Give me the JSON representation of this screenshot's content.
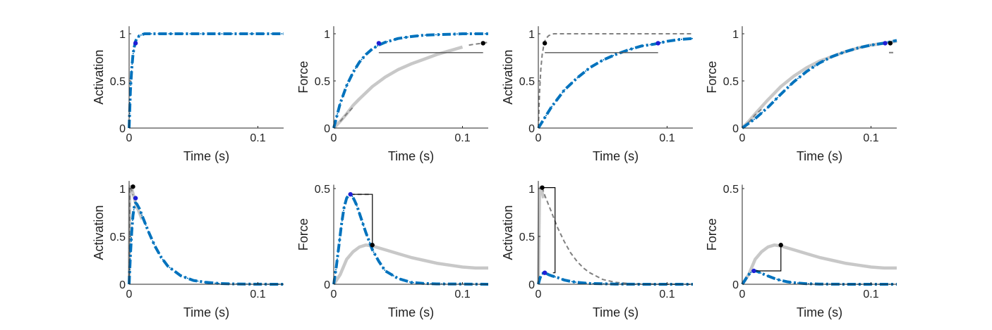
{
  "colors": {
    "model": "#0072bd",
    "data": "#c8c8c8",
    "reference": "#808080",
    "marker_model": "#1f1fd6",
    "marker_data": "#000000",
    "bracket": "#000000",
    "axis": "#262626"
  },
  "chart_data": [
    {
      "type": "line",
      "row": 1,
      "col": 1,
      "xlabel": "Time (s)",
      "ylabel": "Activation",
      "xlim": [
        0,
        0.12
      ],
      "ylim": [
        0,
        1.08
      ],
      "xticks": [
        0,
        0.1
      ],
      "xtick_labels": [
        "0",
        "0.1"
      ],
      "yticks": [
        0,
        0.5,
        1
      ],
      "ytick_labels": [
        "0",
        "0.5",
        "1"
      ],
      "series": [
        {
          "style": "model",
          "x": [
            0,
            0.001,
            0.002,
            0.003,
            0.004,
            0.005,
            0.006,
            0.008,
            0.01,
            0.012,
            0.12
          ],
          "y": [
            0,
            0.39,
            0.63,
            0.78,
            0.86,
            0.92,
            0.95,
            0.98,
            0.99,
            1.0,
            1.0
          ]
        }
      ],
      "markers": [
        {
          "style": "model",
          "x": 0.005,
          "y": 0.9
        }
      ]
    },
    {
      "type": "line",
      "row": 1,
      "col": 2,
      "xlabel": "Time (s)",
      "ylabel": "Force",
      "xlim": [
        0,
        0.12
      ],
      "ylim": [
        0,
        1.08
      ],
      "xticks": [
        0,
        0.1
      ],
      "xtick_labels": [
        "0",
        "0.1"
      ],
      "yticks": [
        0,
        0.5,
        1
      ],
      "ytick_labels": [
        "0",
        "0.5",
        "1"
      ],
      "series": [
        {
          "style": "data",
          "x": [
            0,
            0.005,
            0.01,
            0.015,
            0.02,
            0.03,
            0.04,
            0.05,
            0.06,
            0.07,
            0.08,
            0.09,
            0.1
          ],
          "y": [
            0,
            0.07,
            0.15,
            0.24,
            0.31,
            0.44,
            0.54,
            0.62,
            0.68,
            0.73,
            0.78,
            0.82,
            0.86
          ]
        },
        {
          "style": "reference",
          "x": [
            0.005,
            0.01,
            0.015
          ],
          "y": [
            0.07,
            0.15,
            0.22
          ]
        },
        {
          "style": "reference",
          "x": [
            0.105,
            0.11,
            0.116,
            0.12
          ],
          "y": [
            0.88,
            0.89,
            0.9,
            0.91
          ]
        },
        {
          "style": "model",
          "x": [
            0,
            0.005,
            0.01,
            0.015,
            0.02,
            0.025,
            0.03,
            0.035,
            0.04,
            0.05,
            0.06,
            0.07,
            0.08,
            0.09,
            0.1,
            0.11,
            0.12
          ],
          "y": [
            0,
            0.26,
            0.45,
            0.59,
            0.7,
            0.78,
            0.84,
            0.88,
            0.91,
            0.95,
            0.97,
            0.985,
            0.99,
            0.995,
            1.0,
            1.0,
            1.0
          ]
        }
      ],
      "markers": [
        {
          "style": "model",
          "x": 0.035,
          "y": 0.9
        },
        {
          "style": "data",
          "x": 0.116,
          "y": 0.9
        }
      ],
      "hline": {
        "x": [
          0.035,
          0.116
        ],
        "y": 0.8
      }
    },
    {
      "type": "line",
      "row": 1,
      "col": 3,
      "xlabel": "Time (s)",
      "ylabel": "Activation",
      "xlim": [
        0,
        0.12
      ],
      "ylim": [
        0,
        1.08
      ],
      "xticks": [
        0,
        0.1
      ],
      "xtick_labels": [
        "0",
        "0.1"
      ],
      "yticks": [
        0,
        0.5,
        1
      ],
      "ytick_labels": [
        "0",
        "0.5",
        "1"
      ],
      "series": [
        {
          "style": "reference",
          "x": [
            0,
            0.001,
            0.002,
            0.003,
            0.004,
            0.005,
            0.006,
            0.008,
            0.01,
            0.012,
            0.12
          ],
          "y": [
            0,
            0.39,
            0.63,
            0.78,
            0.86,
            0.92,
            0.95,
            0.98,
            0.99,
            1.0,
            1.0
          ]
        },
        {
          "style": "model",
          "x": [
            0,
            0.01,
            0.02,
            0.03,
            0.04,
            0.05,
            0.06,
            0.07,
            0.08,
            0.09,
            0.1,
            0.11,
            0.12
          ],
          "y": [
            0,
            0.22,
            0.4,
            0.53,
            0.64,
            0.72,
            0.78,
            0.83,
            0.87,
            0.89,
            0.92,
            0.94,
            0.95
          ]
        }
      ],
      "markers": [
        {
          "style": "data",
          "x": 0.005,
          "y": 0.9
        },
        {
          "style": "model",
          "x": 0.093,
          "y": 0.9
        }
      ],
      "hline": {
        "x": [
          0.005,
          0.093
        ],
        "y": 0.8
      }
    },
    {
      "type": "line",
      "row": 1,
      "col": 4,
      "xlabel": "Time (s)",
      "ylabel": "Force",
      "xlim": [
        0,
        0.12
      ],
      "ylim": [
        0,
        1.08
      ],
      "xticks": [
        0,
        0.1
      ],
      "xtick_labels": [
        "0",
        "0.1"
      ],
      "yticks": [
        0,
        0.5,
        1
      ],
      "ytick_labels": [
        "0",
        "0.5",
        "1"
      ],
      "series": [
        {
          "style": "data",
          "x": [
            0,
            0.005,
            0.01,
            0.02,
            0.03,
            0.04,
            0.05,
            0.06,
            0.07,
            0.08,
            0.09,
            0.1,
            0.11,
            0.12
          ],
          "y": [
            0,
            0.07,
            0.15,
            0.3,
            0.44,
            0.55,
            0.64,
            0.71,
            0.76,
            0.81,
            0.85,
            0.88,
            0.9,
            0.92
          ]
        },
        {
          "style": "reference",
          "x": [
            0.005,
            0.01,
            0.015
          ],
          "y": [
            0.06,
            0.14,
            0.2
          ]
        },
        {
          "style": "reference",
          "x": [
            0.114,
            0.118
          ],
          "y": [
            0.8,
            0.8
          ]
        },
        {
          "style": "model",
          "x": [
            0,
            0.01,
            0.02,
            0.03,
            0.04,
            0.05,
            0.06,
            0.07,
            0.08,
            0.09,
            0.1,
            0.11,
            0.12
          ],
          "y": [
            0,
            0.1,
            0.22,
            0.36,
            0.49,
            0.6,
            0.69,
            0.76,
            0.81,
            0.85,
            0.88,
            0.9,
            0.93
          ]
        }
      ],
      "markers": [
        {
          "style": "model",
          "x": 0.111,
          "y": 0.9
        },
        {
          "style": "data",
          "x": 0.115,
          "y": 0.9
        }
      ]
    },
    {
      "type": "line",
      "row": 2,
      "col": 1,
      "xlabel": "Time (s)",
      "ylabel": "Activation",
      "xlim": [
        0,
        0.12
      ],
      "ylim": [
        0,
        1.08
      ],
      "xticks": [
        0,
        0.1
      ],
      "xtick_labels": [
        "0",
        "0.1"
      ],
      "yticks": [
        0,
        0.5,
        1
      ],
      "ytick_labels": [
        "0",
        "0.5",
        "1"
      ],
      "series": [
        {
          "style": "data",
          "x": [
            0,
            0.0005,
            0.001,
            0.002,
            0.003,
            0.004,
            0.005,
            0.007,
            0.01
          ],
          "y": [
            0,
            1.0,
            1.02,
            1.0,
            0.95,
            0.9,
            0.85,
            0.78,
            0.68
          ]
        },
        {
          "style": "reference",
          "x": [
            0,
            0.0005,
            0.001,
            0.002,
            0.003
          ],
          "y": [
            0,
            1.0,
            1.02,
            0.98,
            0.93
          ]
        },
        {
          "style": "model",
          "x": [
            0,
            0.001,
            0.002,
            0.003,
            0.004,
            0.005,
            0.006,
            0.008,
            0.01,
            0.015,
            0.02,
            0.025,
            0.03,
            0.04,
            0.05,
            0.06,
            0.07,
            0.08,
            0.1,
            0.12
          ],
          "y": [
            0,
            0.3,
            0.55,
            0.72,
            0.81,
            0.85,
            0.84,
            0.79,
            0.72,
            0.55,
            0.4,
            0.28,
            0.19,
            0.09,
            0.04,
            0.02,
            0.008,
            0.004,
            0.001,
            0
          ]
        }
      ],
      "markers": [
        {
          "style": "data",
          "x": 0.003,
          "y": 1.02
        },
        {
          "style": "model",
          "x": 0.005,
          "y": 0.9
        }
      ]
    },
    {
      "type": "line",
      "row": 2,
      "col": 2,
      "xlabel": "Time (s)",
      "ylabel": "Force",
      "xlim": [
        0,
        0.12
      ],
      "ylim": [
        0,
        0.52
      ],
      "xticks": [
        0,
        0.1
      ],
      "xtick_labels": [
        "0",
        "0.1"
      ],
      "yticks": [
        0,
        0.5
      ],
      "ytick_labels": [
        "0",
        "0.5"
      ],
      "series": [
        {
          "style": "data",
          "x": [
            0,
            0.005,
            0.01,
            0.015,
            0.02,
            0.025,
            0.03,
            0.04,
            0.05,
            0.06,
            0.07,
            0.08,
            0.09,
            0.1,
            0.11,
            0.12
          ],
          "y": [
            0,
            0.05,
            0.13,
            0.17,
            0.195,
            0.205,
            0.2,
            0.18,
            0.16,
            0.14,
            0.125,
            0.11,
            0.1,
            0.09,
            0.085,
            0.085
          ]
        },
        {
          "style": "reference",
          "x": [
            0.013,
            0.029
          ],
          "y": [
            0.47,
            0.47
          ]
        },
        {
          "style": "model",
          "x": [
            0,
            0.002,
            0.004,
            0.006,
            0.008,
            0.01,
            0.012,
            0.014,
            0.016,
            0.018,
            0.02,
            0.025,
            0.03,
            0.035,
            0.04,
            0.05,
            0.06,
            0.07,
            0.08,
            0.1,
            0.12
          ],
          "y": [
            0,
            0.09,
            0.2,
            0.31,
            0.4,
            0.45,
            0.47,
            0.465,
            0.44,
            0.41,
            0.37,
            0.27,
            0.18,
            0.12,
            0.07,
            0.03,
            0.01,
            0.004,
            0.002,
            0.001,
            0
          ]
        }
      ],
      "markers": [
        {
          "style": "model",
          "x": 0.013,
          "y": 0.47
        },
        {
          "style": "data",
          "x": 0.03,
          "y": 0.205
        }
      ],
      "bracket": {
        "x1": 0.013,
        "x2": 0.03,
        "y1": 0.47,
        "y2": 0.205
      }
    },
    {
      "type": "line",
      "row": 2,
      "col": 3,
      "xlabel": "Time (s)",
      "ylabel": "Activation",
      "xlim": [
        0,
        0.12
      ],
      "ylim": [
        0,
        1.08
      ],
      "xticks": [
        0,
        0.1
      ],
      "xtick_labels": [
        "0",
        "0.1"
      ],
      "yticks": [
        0,
        0.5,
        1
      ],
      "ytick_labels": [
        "0",
        "0.5",
        "1"
      ],
      "series": [
        {
          "style": "data",
          "x": [
            0,
            0.0005,
            0.001,
            0.002,
            0.003,
            0.004
          ],
          "y": [
            0,
            0.5,
            1.0,
            1.01,
            0.96,
            0.9
          ]
        },
        {
          "style": "reference",
          "x": [
            0.003,
            0.005,
            0.01,
            0.015,
            0.02,
            0.025,
            0.03,
            0.035,
            0.04,
            0.05,
            0.06,
            0.07,
            0.08,
            0.1,
            0.12
          ],
          "y": [
            1.01,
            0.93,
            0.76,
            0.59,
            0.45,
            0.33,
            0.24,
            0.17,
            0.12,
            0.05,
            0.02,
            0.008,
            0.003,
            0,
            0
          ]
        },
        {
          "style": "model",
          "x": [
            0,
            0.001,
            0.002,
            0.004,
            0.005,
            0.006,
            0.008,
            0.01,
            0.015,
            0.02,
            0.025,
            0.03,
            0.04,
            0.06,
            0.08,
            0.12
          ],
          "y": [
            0,
            0.05,
            0.09,
            0.12,
            0.12,
            0.115,
            0.1,
            0.09,
            0.07,
            0.045,
            0.03,
            0.02,
            0.008,
            0.002,
            0,
            0
          ]
        }
      ],
      "markers": [
        {
          "style": "data",
          "x": 0.003,
          "y": 1.01
        },
        {
          "style": "model",
          "x": 0.005,
          "y": 0.12
        }
      ],
      "bracket": {
        "x1": 0.003,
        "x2": 0.013,
        "y1": 1.01,
        "y2": 0.12
      }
    },
    {
      "type": "line",
      "row": 2,
      "col": 4,
      "xlabel": "Time (s)",
      "ylabel": "Force",
      "xlim": [
        0,
        0.12
      ],
      "ylim": [
        0,
        0.52
      ],
      "xticks": [
        0,
        0.1
      ],
      "xtick_labels": [
        "0",
        "0.1"
      ],
      "yticks": [
        0,
        0.5
      ],
      "ytick_labels": [
        "0",
        "0.5"
      ],
      "series": [
        {
          "style": "data",
          "x": [
            0,
            0.005,
            0.01,
            0.015,
            0.02,
            0.025,
            0.03,
            0.04,
            0.05,
            0.06,
            0.07,
            0.08,
            0.09,
            0.1,
            0.11,
            0.12
          ],
          "y": [
            0,
            0.05,
            0.13,
            0.17,
            0.195,
            0.205,
            0.2,
            0.18,
            0.16,
            0.14,
            0.125,
            0.11,
            0.1,
            0.09,
            0.085,
            0.085
          ]
        },
        {
          "style": "model",
          "x": [
            0,
            0.002,
            0.004,
            0.006,
            0.008,
            0.01,
            0.012,
            0.015,
            0.02,
            0.025,
            0.03,
            0.035,
            0.04,
            0.05,
            0.06,
            0.08,
            0.12
          ],
          "y": [
            0,
            0.02,
            0.042,
            0.058,
            0.068,
            0.07,
            0.066,
            0.057,
            0.043,
            0.03,
            0.02,
            0.013,
            0.008,
            0.003,
            0.001,
            0,
            0
          ]
        }
      ],
      "markers": [
        {
          "style": "model",
          "x": 0.009,
          "y": 0.07
        },
        {
          "style": "data",
          "x": 0.03,
          "y": 0.205
        }
      ],
      "bracket": {
        "x1": 0.009,
        "x2": 0.03,
        "y1": 0.07,
        "y2": 0.205
      }
    }
  ]
}
